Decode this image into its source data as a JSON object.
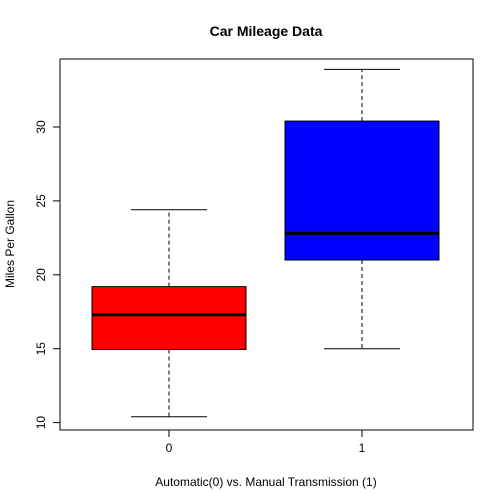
{
  "chart_data": {
    "type": "boxplot",
    "title": "Car Mileage Data",
    "xlabel": "Automatic(0) vs. Manual Transmission (1)",
    "ylabel": "Miles Per Gallon",
    "ylim": [
      9.5,
      34.6
    ],
    "yticks": [
      10,
      15,
      20,
      25,
      30
    ],
    "ytick_labels": [
      "10",
      "15",
      "20",
      "25",
      "30"
    ],
    "categories": [
      "0",
      "1"
    ],
    "boxes": [
      {
        "category": "0",
        "min": 10.4,
        "q1": 14.95,
        "median": 17.3,
        "q3": 19.2,
        "max": 24.4,
        "color": "#ff0000"
      },
      {
        "category": "1",
        "min": 15.0,
        "q1": 21.0,
        "median": 22.8,
        "q3": 30.4,
        "max": 33.9,
        "color": "#0000ff"
      }
    ],
    "grid": false
  }
}
